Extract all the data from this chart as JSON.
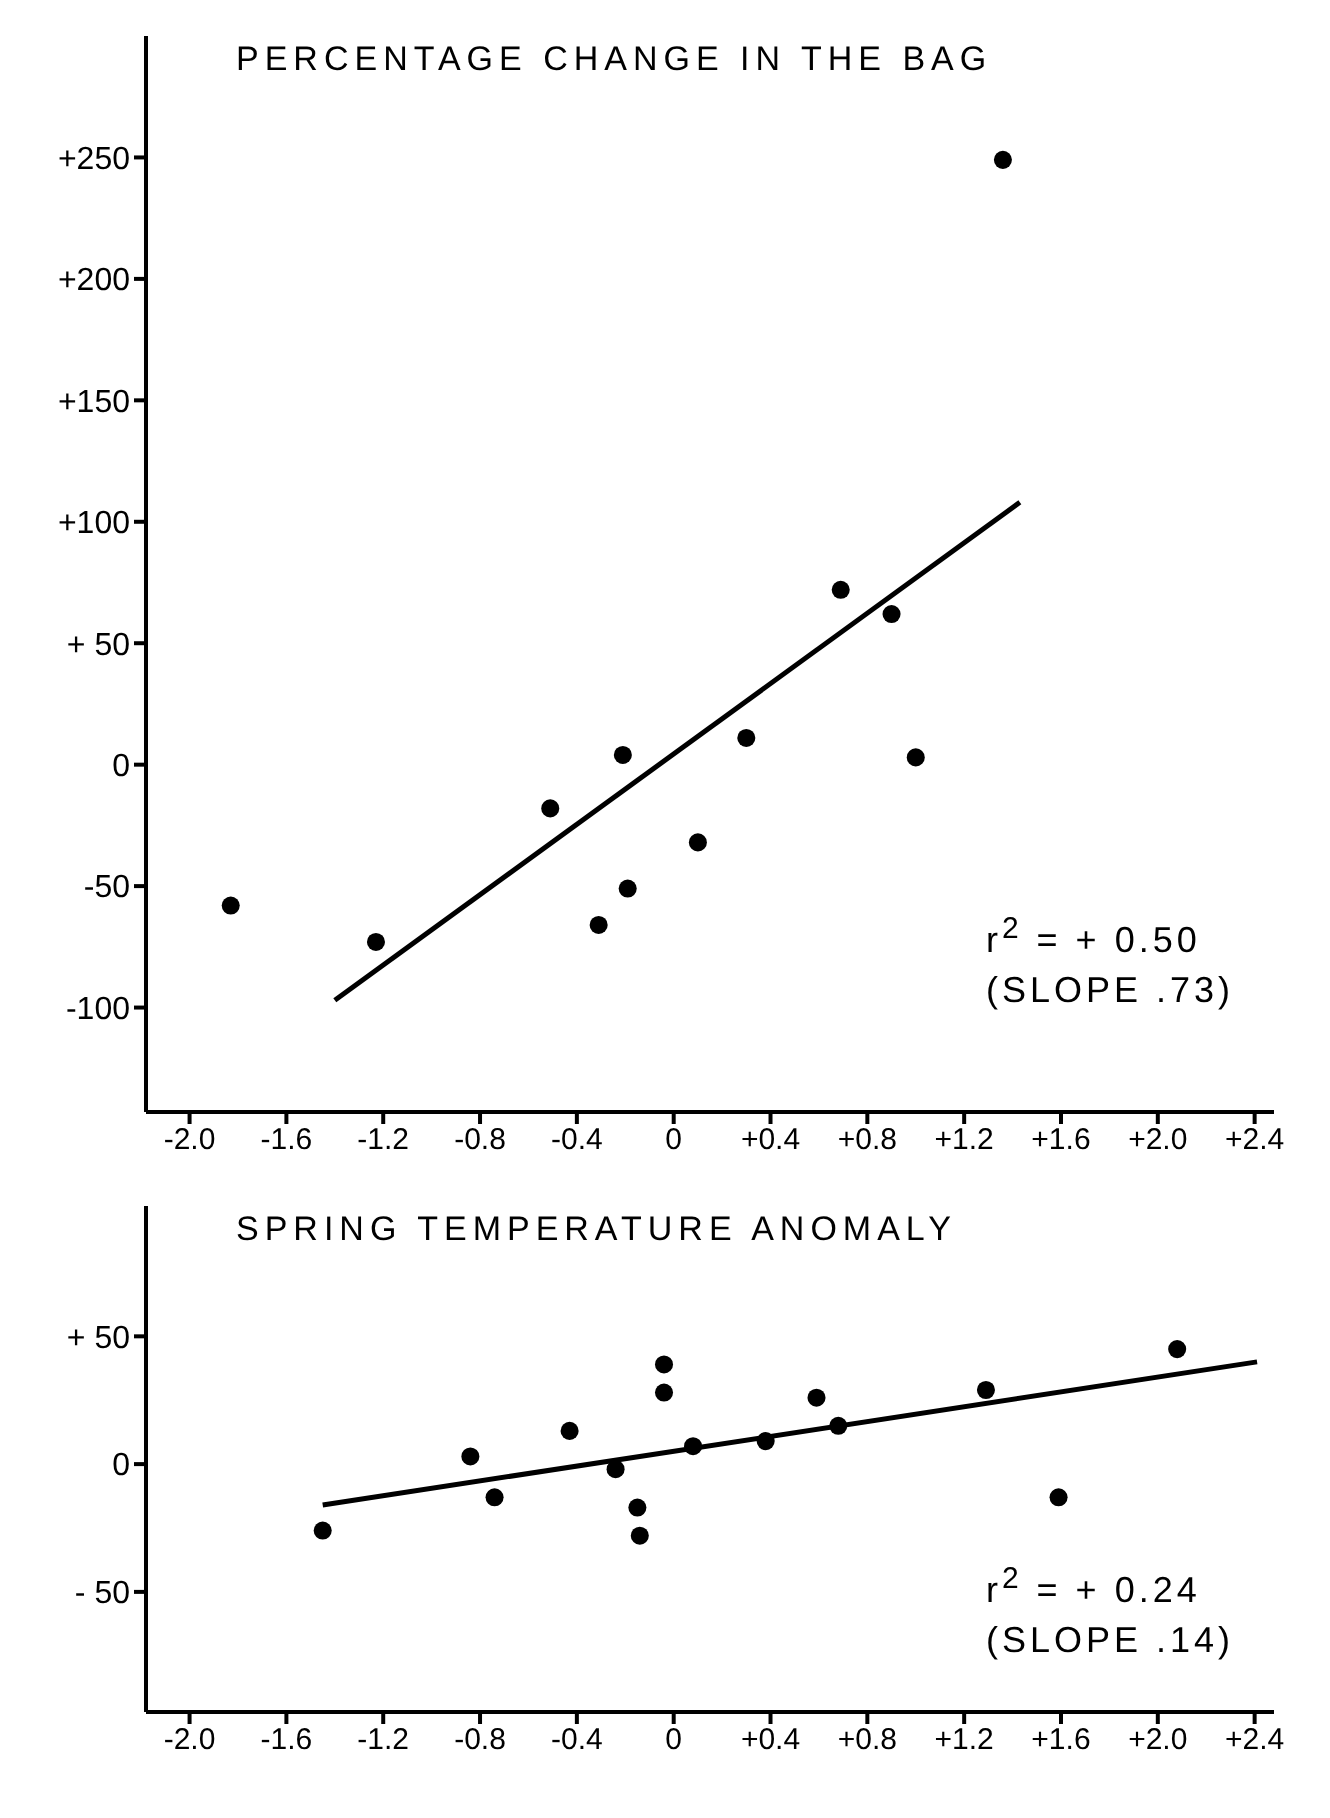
{
  "chart_data": [
    {
      "type": "scatter",
      "title": "PERCENTAGE CHANGE IN THE BAG",
      "grid": false,
      "xlim": [
        -2.18,
        2.48
      ],
      "ylim": [
        -143,
        300
      ],
      "xticks": [
        {
          "value": -2.0,
          "label": "-2.0"
        },
        {
          "value": -1.6,
          "label": "-1.6"
        },
        {
          "value": -1.2,
          "label": "-1.2"
        },
        {
          "value": -0.8,
          "label": "-0.8"
        },
        {
          "value": -0.4,
          "label": "-0.4"
        },
        0,
        {
          "value": 0.4,
          "label": "+0.4"
        },
        {
          "value": 0.8,
          "label": "+0.8"
        },
        {
          "value": 1.2,
          "label": "+1.2"
        },
        {
          "value": 1.6,
          "label": "+1.6"
        },
        {
          "value": 2.0,
          "label": "+2.0"
        },
        {
          "value": 2.4,
          "label": "+2.4"
        }
      ],
      "yticks": [
        -100,
        -50,
        0,
        {
          "value": 50,
          "label": "+ 50"
        },
        {
          "value": 100,
          "label": "+100"
        },
        {
          "value": 150,
          "label": "+150"
        },
        {
          "value": 200,
          "label": "+200"
        },
        {
          "value": 250,
          "label": "+250"
        }
      ],
      "annotations": [
        "r$^{2}$ = + 0.50",
        "(SLOPE .73)"
      ],
      "series": [
        {
          "color": "#000000",
          "marker": "circle",
          "x": [
            -1.83,
            -1.23,
            -0.51,
            -0.31,
            -0.21,
            -0.19,
            0.1,
            0.3,
            0.69,
            0.9,
            1.0,
            1.36
          ],
          "values": [
            -58,
            -73,
            -18,
            -66,
            4,
            -51,
            -32,
            11,
            72,
            62,
            3,
            249
          ]
        },
        {
          "type": "line",
          "marker": "none",
          "color": "#000000",
          "x": [
            -1.4,
            1.43
          ],
          "values": [
            -97,
            108
          ]
        }
      ]
    },
    {
      "type": "scatter",
      "title": "SPRING TEMPERATURE ANOMALY",
      "grid": false,
      "xlim": [
        -2.18,
        2.48
      ],
      "ylim": [
        -97,
        101
      ],
      "xticks": [
        {
          "value": -2.0,
          "label": "-2.0"
        },
        {
          "value": -1.6,
          "label": "-1.6"
        },
        {
          "value": -1.2,
          "label": "-1.2"
        },
        {
          "value": -0.8,
          "label": "-0.8"
        },
        {
          "value": -0.4,
          "label": "-0.4"
        },
        0,
        {
          "value": 0.4,
          "label": "+0.4"
        },
        {
          "value": 0.8,
          "label": "+0.8"
        },
        {
          "value": 1.2,
          "label": "+1.2"
        },
        {
          "value": 1.6,
          "label": "+1.6"
        },
        {
          "value": 2.0,
          "label": "+2.0"
        },
        {
          "value": 2.4,
          "label": "+2.4"
        }
      ],
      "yticks": [
        {
          "value": -50,
          "label": "- 50"
        },
        0,
        {
          "value": 50,
          "label": "+ 50"
        }
      ],
      "annotations": [
        "r$^{2}$ = + 0.24",
        "(SLOPE .14)"
      ],
      "series": [
        {
          "color": "#000000",
          "marker": "circle",
          "x": [
            -1.45,
            -0.84,
            -0.74,
            -0.43,
            -0.24,
            -0.15,
            -0.14,
            -0.04,
            -0.04,
            0.08,
            0.38,
            0.59,
            0.68,
            1.29,
            1.59,
            2.08
          ],
          "values": [
            -26,
            3,
            -13,
            13,
            -2,
            -17,
            -28,
            28,
            39,
            7,
            9,
            26,
            15,
            29,
            -13,
            45
          ]
        },
        {
          "type": "line",
          "marker": "none",
          "color": "#000000",
          "x": [
            -1.45,
            2.41
          ],
          "values": [
            -16,
            40
          ]
        }
      ]
    }
  ]
}
